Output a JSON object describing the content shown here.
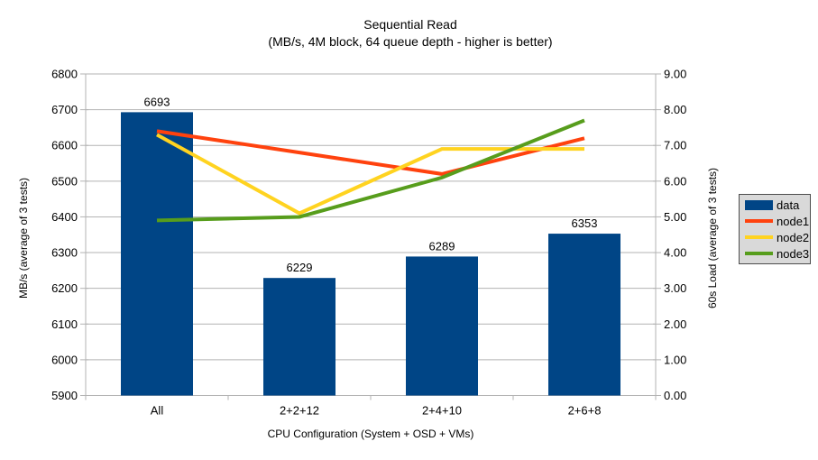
{
  "title": {
    "line1": "Sequential Read",
    "line2": "(MB/s, 4M block, 64 queue depth - higher is better)"
  },
  "axes": {
    "left": {
      "title": "MB/s (average of 3 tests)",
      "ticks": [
        "6800",
        "6700",
        "6600",
        "6500",
        "6400",
        "6300",
        "6200",
        "6100",
        "6000",
        "5900"
      ]
    },
    "right": {
      "title": "60s Load (average of 3 tests)",
      "ticks": [
        "9.00",
        "8.00",
        "7.00",
        "6.00",
        "5.00",
        "4.00",
        "3.00",
        "2.00",
        "1.00",
        "0.00"
      ]
    },
    "x": {
      "title": "CPU Configuration (System + OSD + VMs)"
    }
  },
  "legend": {
    "items": [
      {
        "label": "data",
        "color": "#004586",
        "swatch": "bar"
      },
      {
        "label": "node1",
        "color": "#ff420e",
        "swatch": "line"
      },
      {
        "label": "node2",
        "color": "#ffd320",
        "swatch": "line"
      },
      {
        "label": "node3",
        "color": "#579d1c",
        "swatch": "line"
      }
    ]
  },
  "colors": {
    "grid": "#b3b3b3",
    "axis": "#b3b3b3",
    "legend_bg": "#d9d9d9"
  },
  "chart_data": {
    "type": "bar",
    "title": "Sequential Read (MB/s, 4M block, 64 queue depth - higher is better)",
    "categories": [
      "All",
      "2+2+12",
      "2+4+10",
      "2+6+8"
    ],
    "series": [
      {
        "name": "data",
        "type": "bar",
        "axis": "left",
        "color": "#004586",
        "values": [
          6693,
          6229,
          6289,
          6353
        ],
        "data_labels": [
          "6693",
          "6229",
          "6289",
          "6353"
        ]
      },
      {
        "name": "node1",
        "type": "line",
        "axis": "right",
        "color": "#ff420e",
        "values": [
          7.4,
          6.8,
          6.2,
          7.2
        ]
      },
      {
        "name": "node2",
        "type": "line",
        "axis": "right",
        "color": "#ffd320",
        "values": [
          7.3,
          5.1,
          6.9,
          6.9
        ]
      },
      {
        "name": "node3",
        "type": "line",
        "axis": "right",
        "color": "#579d1c",
        "values": [
          4.9,
          5.0,
          6.1,
          7.7
        ]
      }
    ],
    "xlabel": "CPU Configuration (System + OSD + VMs)",
    "ylabel_left": "MB/s (average of 3 tests)",
    "ylabel_right": "60s Load (average of 3 tests)",
    "ylim_left": [
      5900,
      6800
    ],
    "ylim_right": [
      0,
      9
    ],
    "grid": true,
    "legend_position": "right"
  }
}
